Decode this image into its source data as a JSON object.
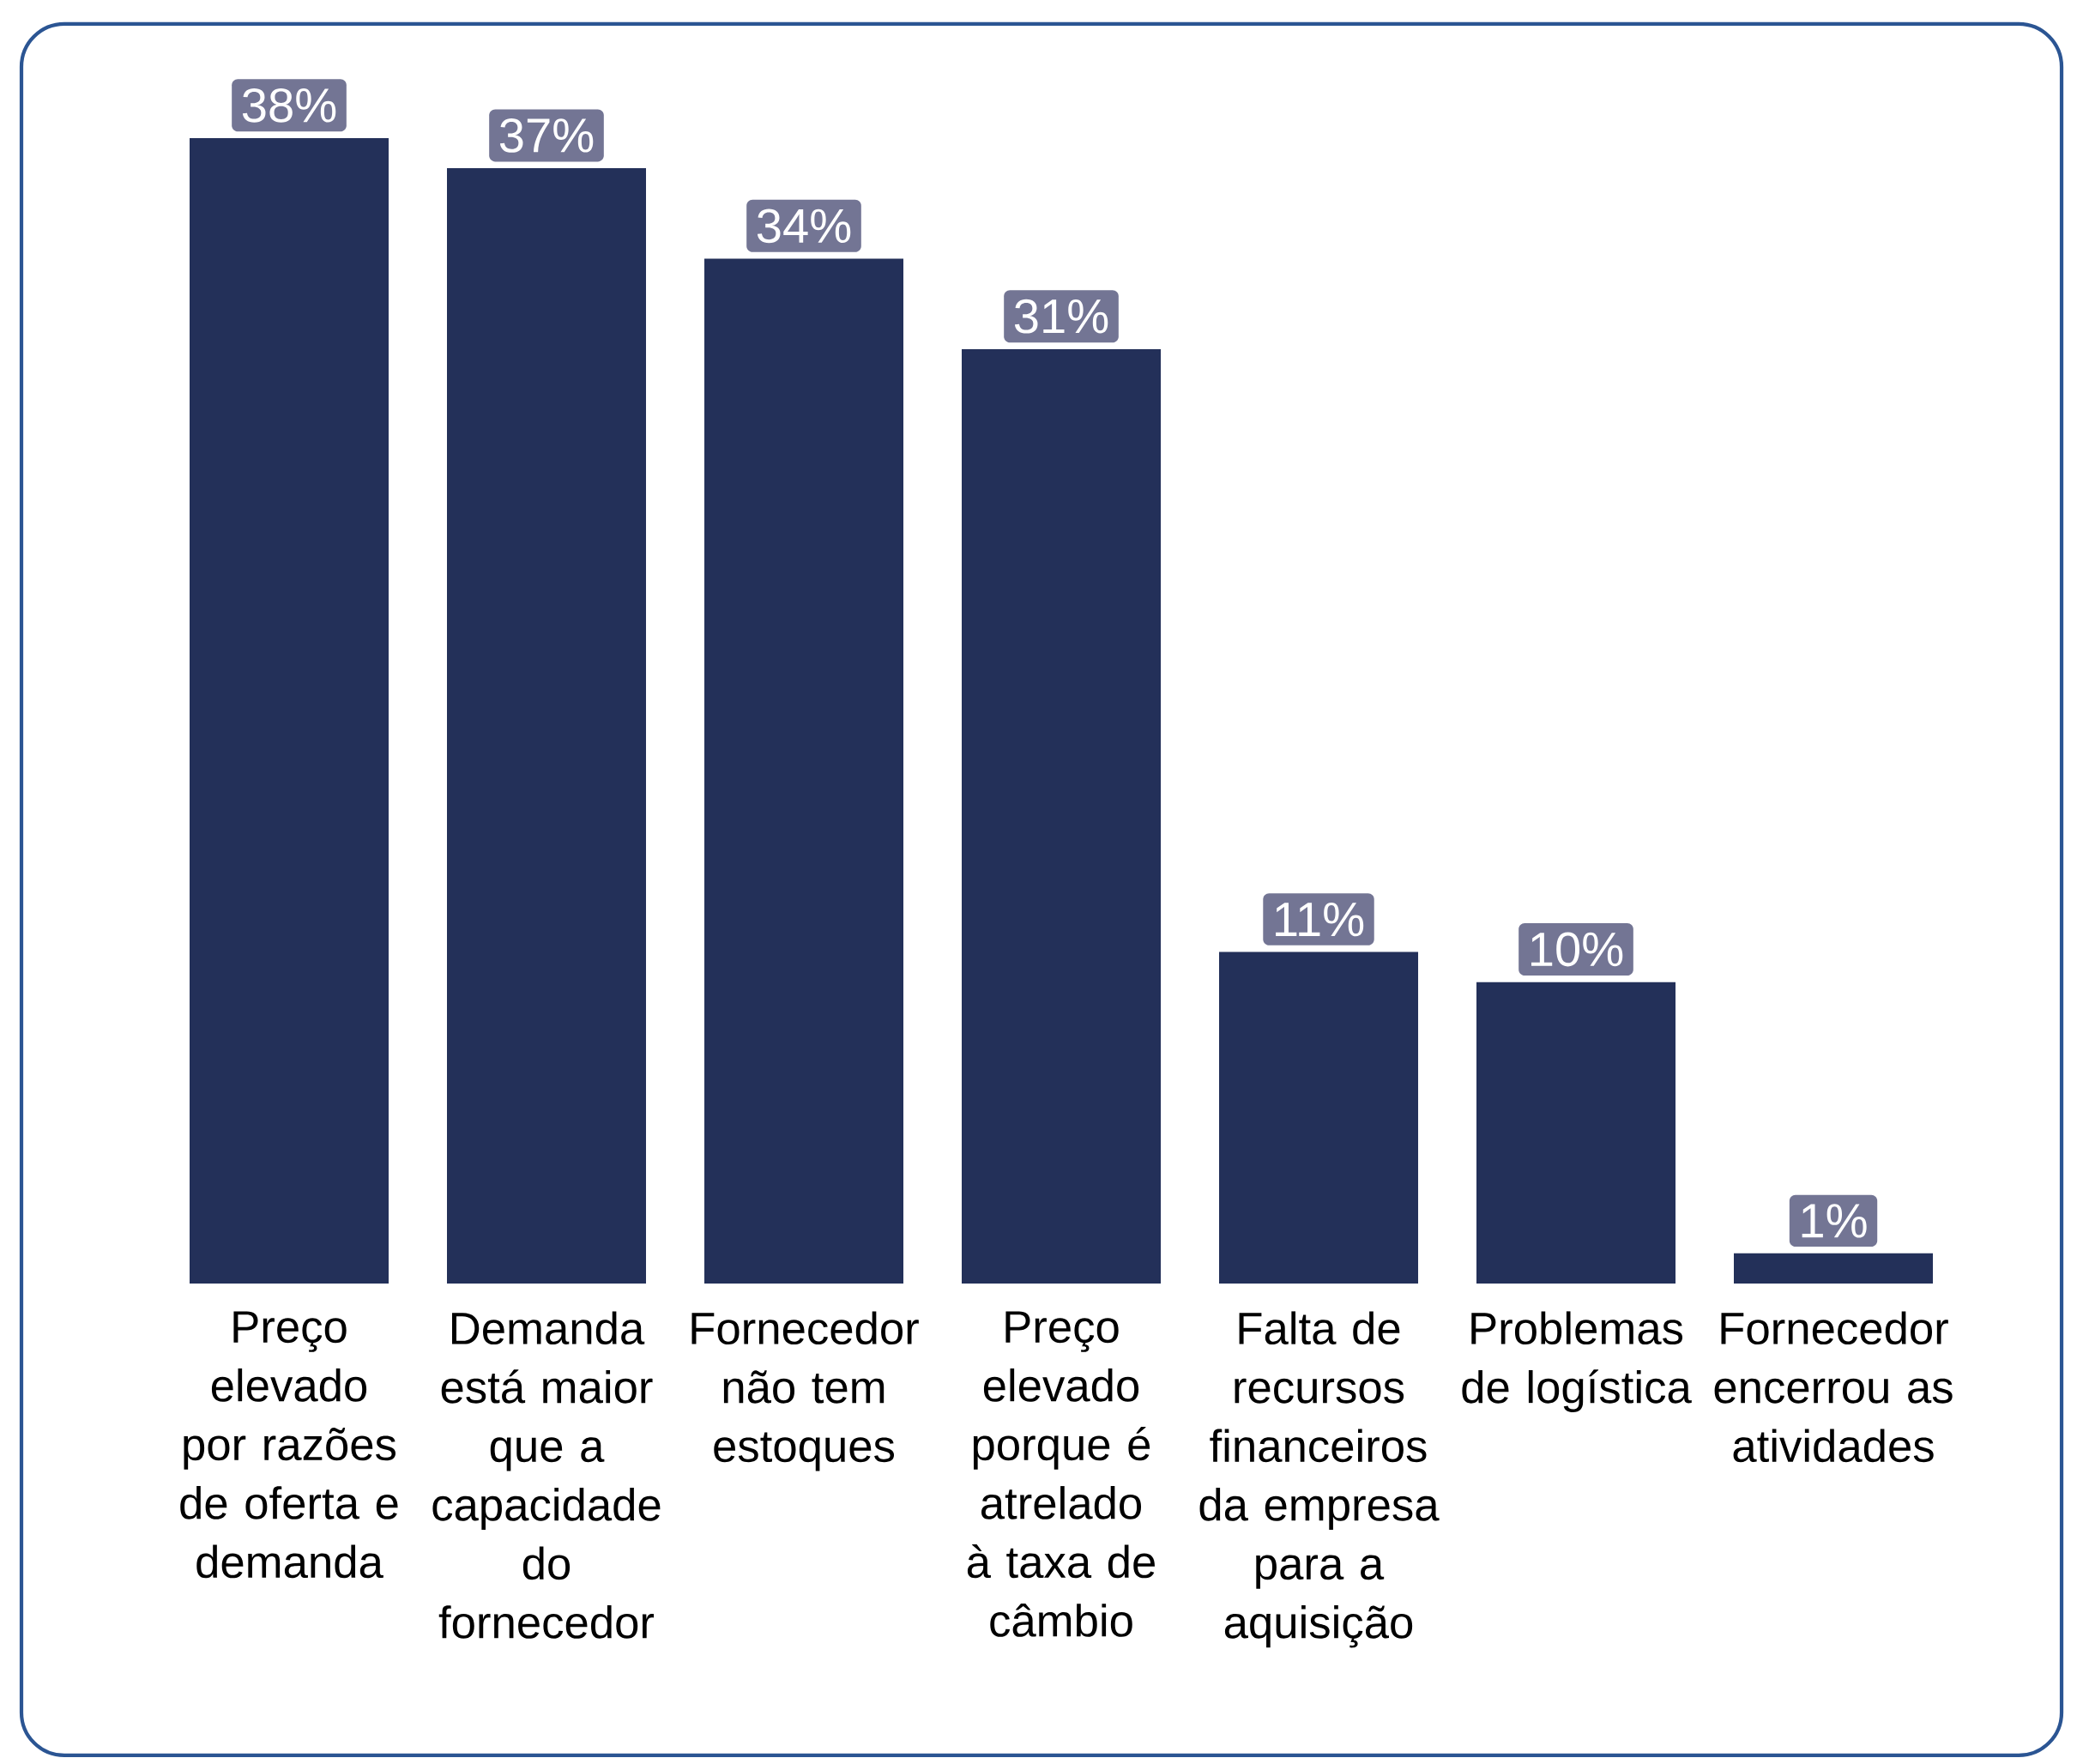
{
  "chart_data": {
    "type": "bar",
    "categories": [
      "Preço elevado por razões de oferta e demanda",
      "Demanda está maior que a capacidade do fornecedor",
      "Fornecedor não tem estoques",
      "Preço elevado porque é atrelado à taxa de câmbio",
      "Falta de recursos financeiros da empresa para a aquisição",
      "Problemas de logística",
      "Fornecedor encerrou as atividades"
    ],
    "values": [
      38,
      37,
      34,
      31,
      11,
      10,
      1
    ],
    "value_labels": [
      "38%",
      "37%",
      "34%",
      "31%",
      "11%",
      "10%",
      "1%"
    ],
    "color": "#233059",
    "grid": false
  }
}
